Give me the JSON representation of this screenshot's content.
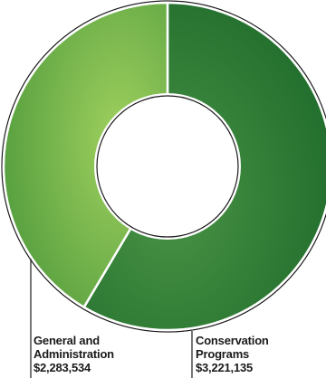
{
  "chart_data": {
    "type": "pie",
    "donut": true,
    "categories": [
      "Conservation Programs",
      "General and Administration"
    ],
    "slices": [
      {
        "name_lines": [
          "Conservation",
          "Programs"
        ],
        "value": 3221135,
        "value_label": "$3,221,135",
        "color_start": "#1e6a2a",
        "color_end": "#4a9446"
      },
      {
        "name_lines": [
          "General and",
          "Administration"
        ],
        "value": 2283534,
        "value_label": "$2,283,534",
        "color_start": "#4f9a3c",
        "color_end": "#9fd05e"
      }
    ],
    "legend": "none",
    "grid": false,
    "outline_color": "#1a1a1a"
  }
}
